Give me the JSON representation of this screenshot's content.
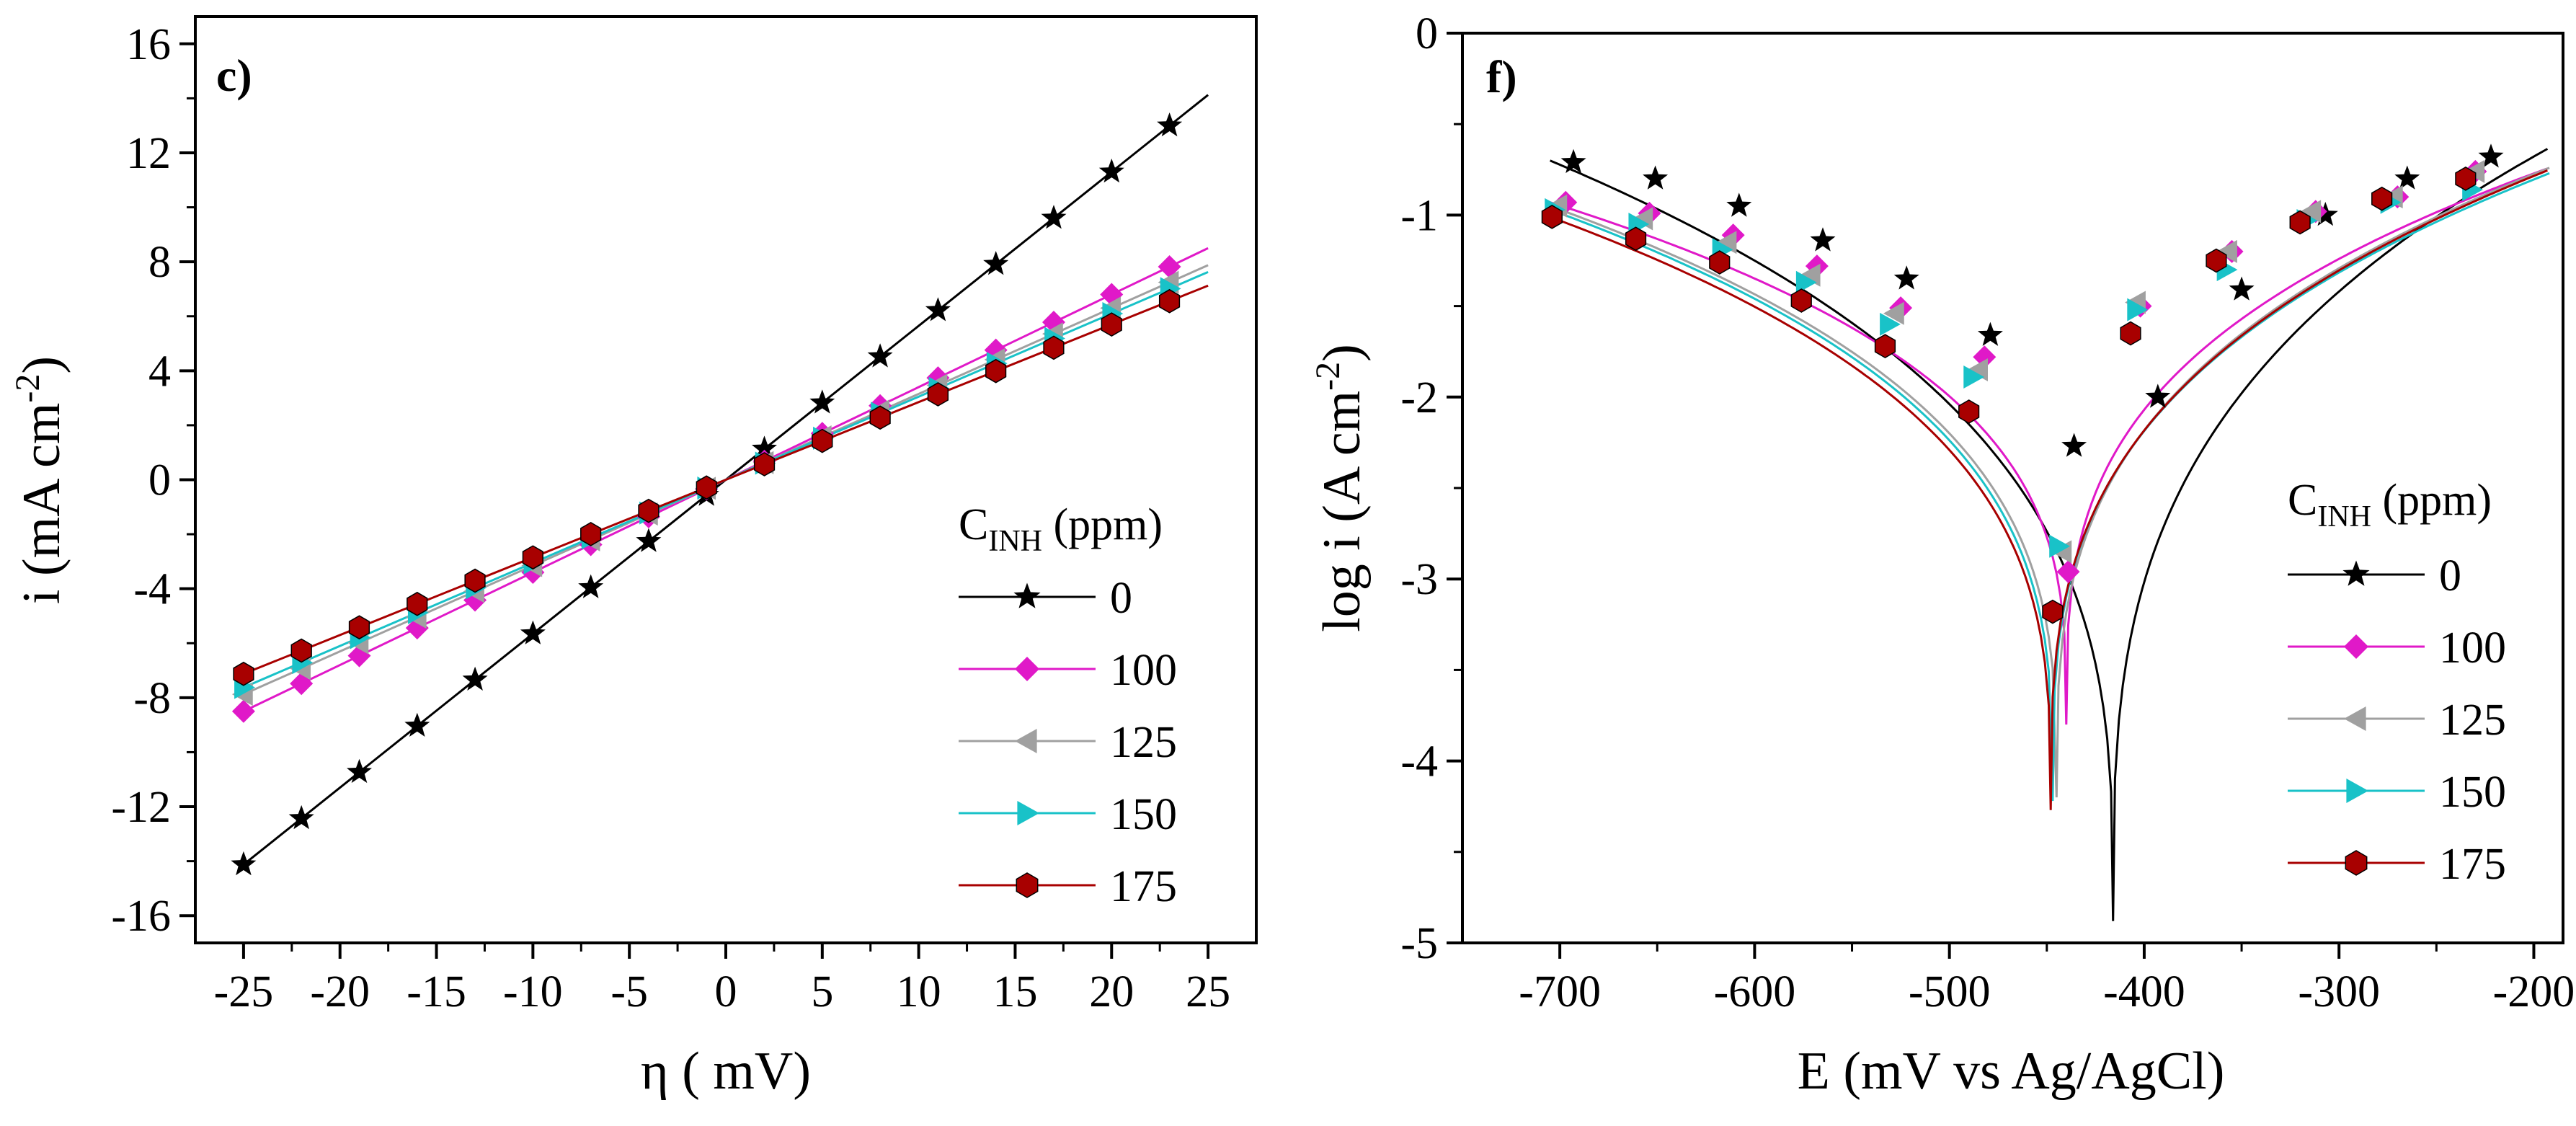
{
  "chart_data": [
    {
      "panel_label": "c)",
      "type": "line",
      "xlabel": "η ( mV)",
      "ylabel": "i  (mA cm-2)",
      "ylabel_parts": {
        "main": "i  (mA cm",
        "sup": "-2",
        "close": ")"
      },
      "xlim": [
        -27.5,
        27.5
      ],
      "ylim": [
        -17,
        17
      ],
      "xticks": [
        -25,
        -20,
        -15,
        -10,
        -5,
        0,
        5,
        10,
        15,
        20,
        25
      ],
      "xtick_labels": [
        "-25",
        "-20",
        "-15",
        "-10",
        "-5",
        "0",
        "5",
        "10",
        "15",
        "20",
        "25"
      ],
      "yticks": [
        -16,
        -12,
        -8,
        -4,
        0,
        4,
        8,
        12,
        16
      ],
      "ytick_labels": [
        "-16",
        "-12",
        "-8",
        "-4",
        "0",
        "4",
        "8",
        "12",
        "16"
      ],
      "legend": {
        "title_main": "C",
        "title_sub": "INH",
        "title_rest": " (ppm)",
        "position": "right"
      },
      "series": [
        {
          "name": "0",
          "color": "#000000",
          "marker": "star",
          "x": [
            -25,
            -22,
            -19,
            -16,
            -13,
            -10,
            -7,
            -4,
            -1,
            2,
            5,
            8,
            11,
            14,
            17,
            20,
            23
          ],
          "slope": 0.565,
          "offset": 0.0,
          "x_range": [
            -25,
            25
          ]
        },
        {
          "name": "100",
          "color": "#e019c8",
          "marker": "diamond",
          "x": [
            -25,
            -22,
            -19,
            -16,
            -13,
            -10,
            -7,
            -4,
            -1,
            2,
            5,
            8,
            11,
            14,
            17,
            20,
            23
          ],
          "slope": 0.34,
          "offset": 0.0,
          "x_range": [
            -25,
            25
          ]
        },
        {
          "name": "125",
          "color": "#a0a0a0",
          "marker": "triangle-left",
          "x": [
            -25,
            -22,
            -19,
            -16,
            -13,
            -10,
            -7,
            -4,
            -1,
            2,
            5,
            8,
            11,
            14,
            17,
            20,
            23
          ],
          "slope": 0.315,
          "offset": 0.0,
          "x_range": [
            -25,
            25
          ]
        },
        {
          "name": "150",
          "color": "#19c2c8",
          "marker": "triangle-right",
          "x": [
            -25,
            -22,
            -19,
            -16,
            -13,
            -10,
            -7,
            -4,
            -1,
            2,
            5,
            8,
            11,
            14,
            17,
            20,
            23
          ],
          "slope": 0.305,
          "offset": 0.0,
          "x_range": [
            -25,
            25
          ]
        },
        {
          "name": "175",
          "color": "#a80000",
          "marker": "hexagon",
          "x": [
            -25,
            -22,
            -19,
            -16,
            -13,
            -10,
            -7,
            -4,
            -1,
            2,
            5,
            8,
            11,
            14,
            17,
            20,
            23
          ],
          "slope": 0.285,
          "offset": 0.0,
          "x_range": [
            -25,
            25
          ]
        }
      ]
    },
    {
      "panel_label": "f)",
      "type": "line",
      "xlabel": "E (mV vs Ag/AgCl)",
      "ylabel": "log  i  (A cm-2)",
      "ylabel_parts": {
        "main": "log  i  (A cm",
        "sup": "-2",
        "close": ")"
      },
      "xlim": [
        -750,
        -185
      ],
      "ylim": [
        -5,
        0
      ],
      "xticks": [
        -700,
        -600,
        -500,
        -400,
        -300,
        -200
      ],
      "xtick_labels": [
        "-700",
        "-600",
        "-500",
        "-400",
        "-300",
        "-200"
      ],
      "yticks": [
        -5,
        -4,
        -3,
        -2,
        -1,
        0
      ],
      "ytick_labels": [
        "-5",
        "-4",
        "-3",
        "-2",
        "-1",
        "0"
      ],
      "legend": {
        "title_main": "C",
        "title_sub": "INH",
        "title_rest": " (ppm)",
        "position": "right"
      },
      "series": [
        {
          "name": "0",
          "color": "#000000",
          "marker": "star",
          "ecorr": -416,
          "min_log": -4.88,
          "start": [
            -705,
            -0.7
          ],
          "end": [
            -192,
            -0.63
          ],
          "markers": [
            [
              -693,
              -0.71
            ],
            [
              -651,
              -0.8
            ],
            [
              -608,
              -0.95
            ],
            [
              -565,
              -1.14
            ],
            [
              -522,
              -1.35
            ],
            [
              -479,
              -1.66
            ],
            [
              -436,
              -2.27
            ],
            [
              -393,
              -2.0
            ],
            [
              -350,
              -1.41
            ],
            [
              -307,
              -1.0
            ],
            [
              -265,
              -0.8
            ],
            [
              -222,
              -0.68
            ]
          ]
        },
        {
          "name": "100",
          "color": "#e019c8",
          "marker": "diamond",
          "ecorr": -440,
          "min_log": -3.8,
          "start": [
            -705,
            -0.93
          ],
          "end": [
            -192,
            -0.74
          ],
          "markers": [
            [
              -697,
              -0.93
            ],
            [
              -654,
              -0.99
            ],
            [
              -611,
              -1.11
            ],
            [
              -568,
              -1.28
            ],
            [
              -525,
              -1.51
            ],
            [
              -482,
              -1.78
            ],
            [
              -439,
              -2.96
            ],
            [
              -402,
              -1.5
            ],
            [
              -355,
              -1.2
            ],
            [
              -312,
              -0.98
            ],
            [
              -270,
              -0.9
            ],
            [
              -230,
              -0.76
            ]
          ]
        },
        {
          "name": "125",
          "color": "#a0a0a0",
          "marker": "triangle-left",
          "ecorr": -445,
          "min_log": -4.2,
          "start": [
            -705,
            -0.95
          ],
          "end": [
            -192,
            -0.74
          ],
          "markers": [
            [
              -701,
              -0.95
            ],
            [
              -657,
              -1.02
            ],
            [
              -614,
              -1.15
            ],
            [
              -571,
              -1.33
            ],
            [
              -528,
              -1.54
            ],
            [
              -485,
              -1.85
            ],
            [
              -442,
              -2.85
            ],
            [
              -404,
              -1.48
            ],
            [
              -357,
              -1.2
            ],
            [
              -314,
              -0.98
            ],
            [
              -272,
              -0.9
            ],
            [
              -230,
              -0.76
            ]
          ]
        },
        {
          "name": "150",
          "color": "#19c2c8",
          "marker": "triangle-right",
          "ecorr": -447,
          "min_log": -4.22,
          "start": [
            -705,
            -0.97
          ],
          "end": [
            -192,
            -0.77
          ],
          "markers": [
            [
              -703,
              -0.97
            ],
            [
              -660,
              -1.05
            ],
            [
              -617,
              -1.19
            ],
            [
              -574,
              -1.37
            ],
            [
              -531,
              -1.6
            ],
            [
              -488,
              -1.89
            ],
            [
              -444,
              -2.82
            ],
            [
              -404,
              -1.52
            ],
            [
              -358,
              -1.3
            ],
            [
              -317,
              -1.03
            ],
            [
              -274,
              -0.93
            ],
            [
              -232,
              -0.86
            ]
          ]
        },
        {
          "name": "175",
          "color": "#a80000",
          "marker": "hexagon",
          "ecorr": -448,
          "min_log": -4.27,
          "start": [
            -705,
            -1.01
          ],
          "end": [
            -192,
            -0.75
          ],
          "markers": [
            [
              -704,
              -1.01
            ],
            [
              -661,
              -1.13
            ],
            [
              -618,
              -1.26
            ],
            [
              -576,
              -1.47
            ],
            [
              -533,
              -1.72
            ],
            [
              -490,
              -2.08
            ],
            [
              -447,
              -3.18
            ],
            [
              -407,
              -1.65
            ],
            [
              -363,
              -1.25
            ],
            [
              -320,
              -1.04
            ],
            [
              -278,
              -0.91
            ],
            [
              -235,
              -0.8
            ]
          ]
        }
      ]
    }
  ]
}
